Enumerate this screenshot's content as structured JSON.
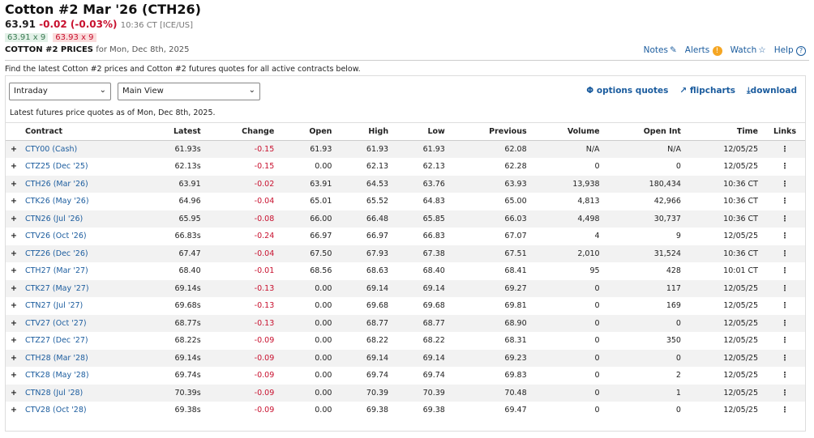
{
  "header": {
    "title": "Cotton #2 Mar '26 (CTH26)",
    "last": "63.91",
    "change": "-0.02 (-0.03%)",
    "time": "10:36 CT [ICE/US]",
    "bid": "63.91 x 9",
    "ask": "63.93 x 9",
    "prices_label": "COTTON #2 PRICES",
    "prices_date": "for Mon, Dec 8th, 2025"
  },
  "toplinks": {
    "notes": "Notes",
    "alerts": "Alerts",
    "watch": "Watch",
    "help": "Help"
  },
  "intro": "Find the latest Cotton #2 prices and Cotton #2 futures quotes for all active contracts below.",
  "controls": {
    "period": "Intraday",
    "view": "Main View",
    "options": "options quotes",
    "flipcharts": "flipcharts",
    "download": "download"
  },
  "asof": "Latest futures price quotes as of Mon, Dec 8th, 2025.",
  "columns": [
    "Contract",
    "Latest",
    "Change",
    "Open",
    "High",
    "Low",
    "Previous",
    "Volume",
    "Open Int",
    "Time",
    "Links"
  ],
  "rows": [
    [
      "CTY00 (Cash)",
      "61.93s",
      "-0.15",
      "61.93",
      "61.93",
      "61.93",
      "62.08",
      "N/A",
      "N/A",
      "12/05/25"
    ],
    [
      "CTZ25 (Dec '25)",
      "62.13s",
      "-0.15",
      "0.00",
      "62.13",
      "62.13",
      "62.28",
      "0",
      "0",
      "12/05/25"
    ],
    [
      "CTH26 (Mar '26)",
      "63.91",
      "-0.02",
      "63.91",
      "64.53",
      "63.76",
      "63.93",
      "13,938",
      "180,434",
      "10:36 CT"
    ],
    [
      "CTK26 (May '26)",
      "64.96",
      "-0.04",
      "65.01",
      "65.52",
      "64.83",
      "65.00",
      "4,813",
      "42,966",
      "10:36 CT"
    ],
    [
      "CTN26 (Jul '26)",
      "65.95",
      "-0.08",
      "66.00",
      "66.48",
      "65.85",
      "66.03",
      "4,498",
      "30,737",
      "10:36 CT"
    ],
    [
      "CTV26 (Oct '26)",
      "66.83s",
      "-0.24",
      "66.97",
      "66.97",
      "66.83",
      "67.07",
      "4",
      "9",
      "12/05/25"
    ],
    [
      "CTZ26 (Dec '26)",
      "67.47",
      "-0.04",
      "67.50",
      "67.93",
      "67.38",
      "67.51",
      "2,010",
      "31,524",
      "10:36 CT"
    ],
    [
      "CTH27 (Mar '27)",
      "68.40",
      "-0.01",
      "68.56",
      "68.63",
      "68.40",
      "68.41",
      "95",
      "428",
      "10:01 CT"
    ],
    [
      "CTK27 (May '27)",
      "69.14s",
      "-0.13",
      "0.00",
      "69.14",
      "69.14",
      "69.27",
      "0",
      "117",
      "12/05/25"
    ],
    [
      "CTN27 (Jul '27)",
      "69.68s",
      "-0.13",
      "0.00",
      "69.68",
      "69.68",
      "69.81",
      "0",
      "169",
      "12/05/25"
    ],
    [
      "CTV27 (Oct '27)",
      "68.77s",
      "-0.13",
      "0.00",
      "68.77",
      "68.77",
      "68.90",
      "0",
      "0",
      "12/05/25"
    ],
    [
      "CTZ27 (Dec '27)",
      "68.22s",
      "-0.09",
      "0.00",
      "68.22",
      "68.22",
      "68.31",
      "0",
      "350",
      "12/05/25"
    ],
    [
      "CTH28 (Mar '28)",
      "69.14s",
      "-0.09",
      "0.00",
      "69.14",
      "69.14",
      "69.23",
      "0",
      "0",
      "12/05/25"
    ],
    [
      "CTK28 (May '28)",
      "69.74s",
      "-0.09",
      "0.00",
      "69.74",
      "69.74",
      "69.83",
      "0",
      "2",
      "12/05/25"
    ],
    [
      "CTN28 (Jul '28)",
      "70.39s",
      "-0.09",
      "0.00",
      "70.39",
      "70.39",
      "70.48",
      "0",
      "1",
      "12/05/25"
    ],
    [
      "CTV28 (Oct '28)",
      "69.38s",
      "-0.09",
      "0.00",
      "69.38",
      "69.38",
      "69.47",
      "0",
      "0",
      "12/05/25"
    ]
  ]
}
